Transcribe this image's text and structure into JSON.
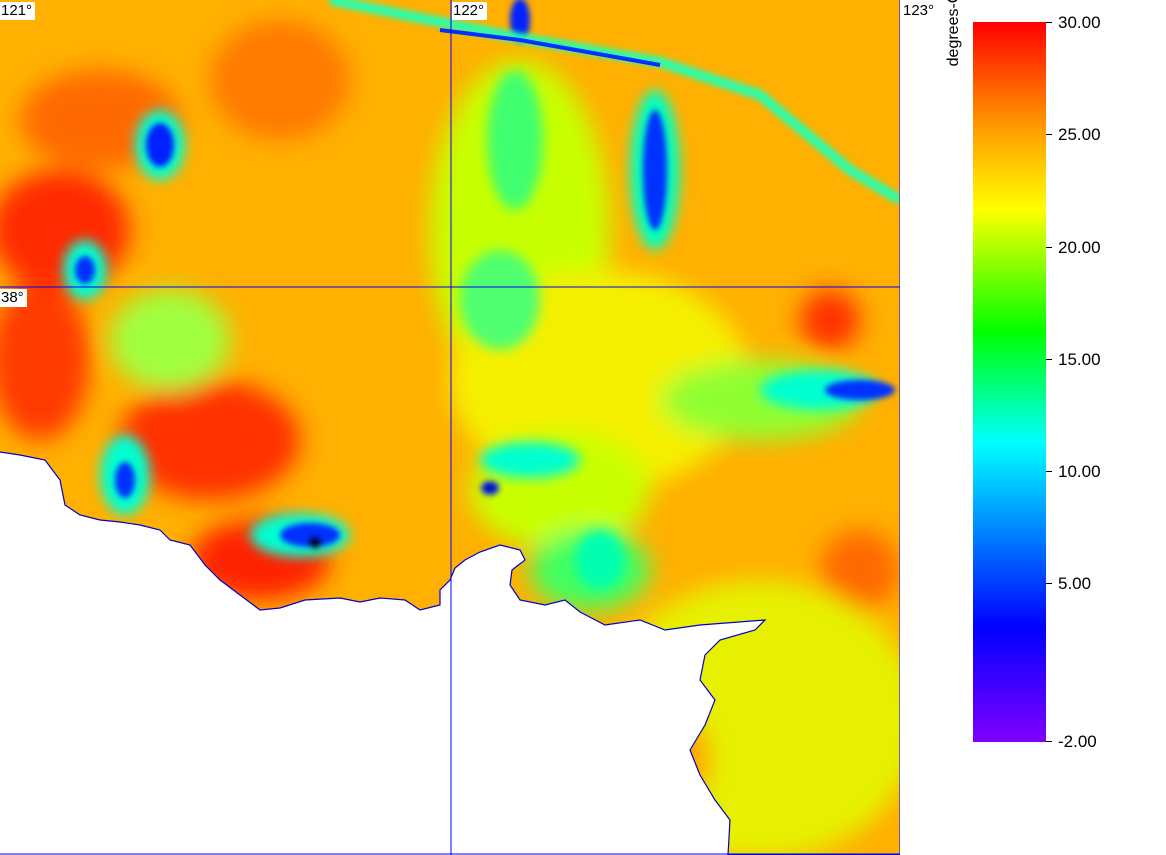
{
  "map": {
    "grid_labels": {
      "lon_121": "121°",
      "lon_122": "122°",
      "lon_123": "123°",
      "lat_38": "38°"
    },
    "colors": {
      "grid_line": "#0000ff",
      "land": "#ffffff",
      "coast": "#0000cc"
    }
  },
  "colorbar": {
    "unit": "degrees-C",
    "min": -2.0,
    "max": 30.0,
    "labels": [
      "30.00",
      "25.00",
      "20.00",
      "15.00",
      "10.00",
      "5.00",
      "-2.00"
    ],
    "colors": [
      "#ff0000",
      "#ff9200",
      "#ffff00",
      "#00ff00",
      "#00ffff",
      "#0000ff",
      "#7f00ff"
    ]
  }
}
